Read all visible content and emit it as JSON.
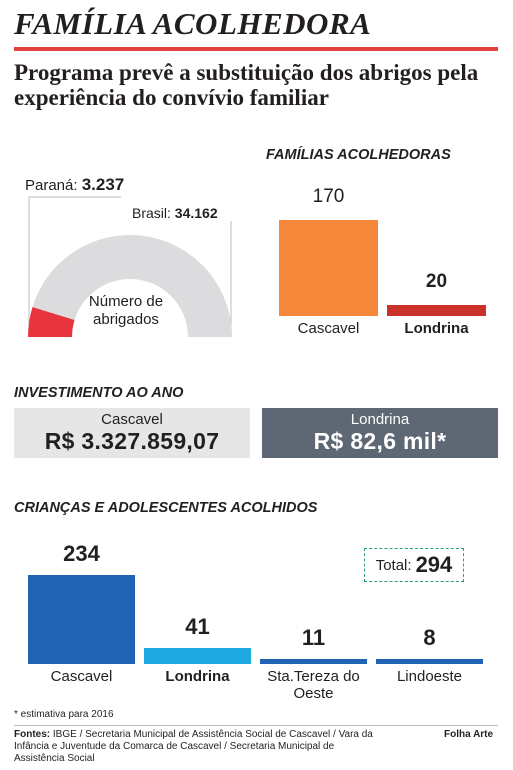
{
  "header": {
    "title": "FAMÍLIA ACOLHEDORA",
    "subtitle": "Programa prevê a substituição dos abrigos pela experiência do convívio familiar",
    "accent_color": "#e0433f"
  },
  "chart_data": [
    {
      "type": "gauge",
      "title": "",
      "center_label": "Número de abrigados",
      "total": {
        "name": "Brasil",
        "value": 34162,
        "label": "34.162"
      },
      "part": {
        "name": "Paraná",
        "value": 3237,
        "label": "3.237"
      },
      "colors": {
        "track": "#dcdcde",
        "part": "#e8353d"
      }
    },
    {
      "type": "bar",
      "title": "FAMÍLIAS ACOLHEDORAS",
      "categories": [
        "Cascavel",
        "Londrina"
      ],
      "values": [
        170,
        20
      ],
      "value_labels": [
        "170",
        "20"
      ],
      "colors": [
        "#f5883a",
        "#c9312a"
      ]
    },
    {
      "type": "table",
      "title": "INVESTIMENTO AO ANO",
      "rows": [
        {
          "city": "Cascavel",
          "amount": "R$ 3.327.859,07",
          "bg": "#e6e6e7",
          "fg": "#231f20"
        },
        {
          "city": "Londrina",
          "amount": "R$ 82,6 mil*",
          "bg": "#5d6874",
          "fg": "#ffffff"
        }
      ]
    },
    {
      "type": "bar",
      "title": "CRIANÇAS E ADOLESCENTES ACOLHIDOS",
      "categories": [
        "Cascavel",
        "Londrina",
        "Sta.Tereza do Oeste",
        "Lindoeste"
      ],
      "values": [
        234,
        41,
        11,
        8
      ],
      "value_labels": [
        "234",
        "41",
        "11",
        "8"
      ],
      "colors": [
        "#2164b3",
        "#1fa9e1",
        "#2164b3",
        "#2164b3"
      ],
      "total": {
        "label": "Total:",
        "value": "294"
      }
    }
  ],
  "footer": {
    "note": "* estimativa para 2016",
    "sources_label": "Fontes:",
    "sources": "IBGE / Secretaria Municipal de Assistência Social de Cascavel / Vara da Infância e Juventude da Comarca de Cascavel / Secretaria Municipal de Assistência Social",
    "credit": "Folha Arte"
  }
}
